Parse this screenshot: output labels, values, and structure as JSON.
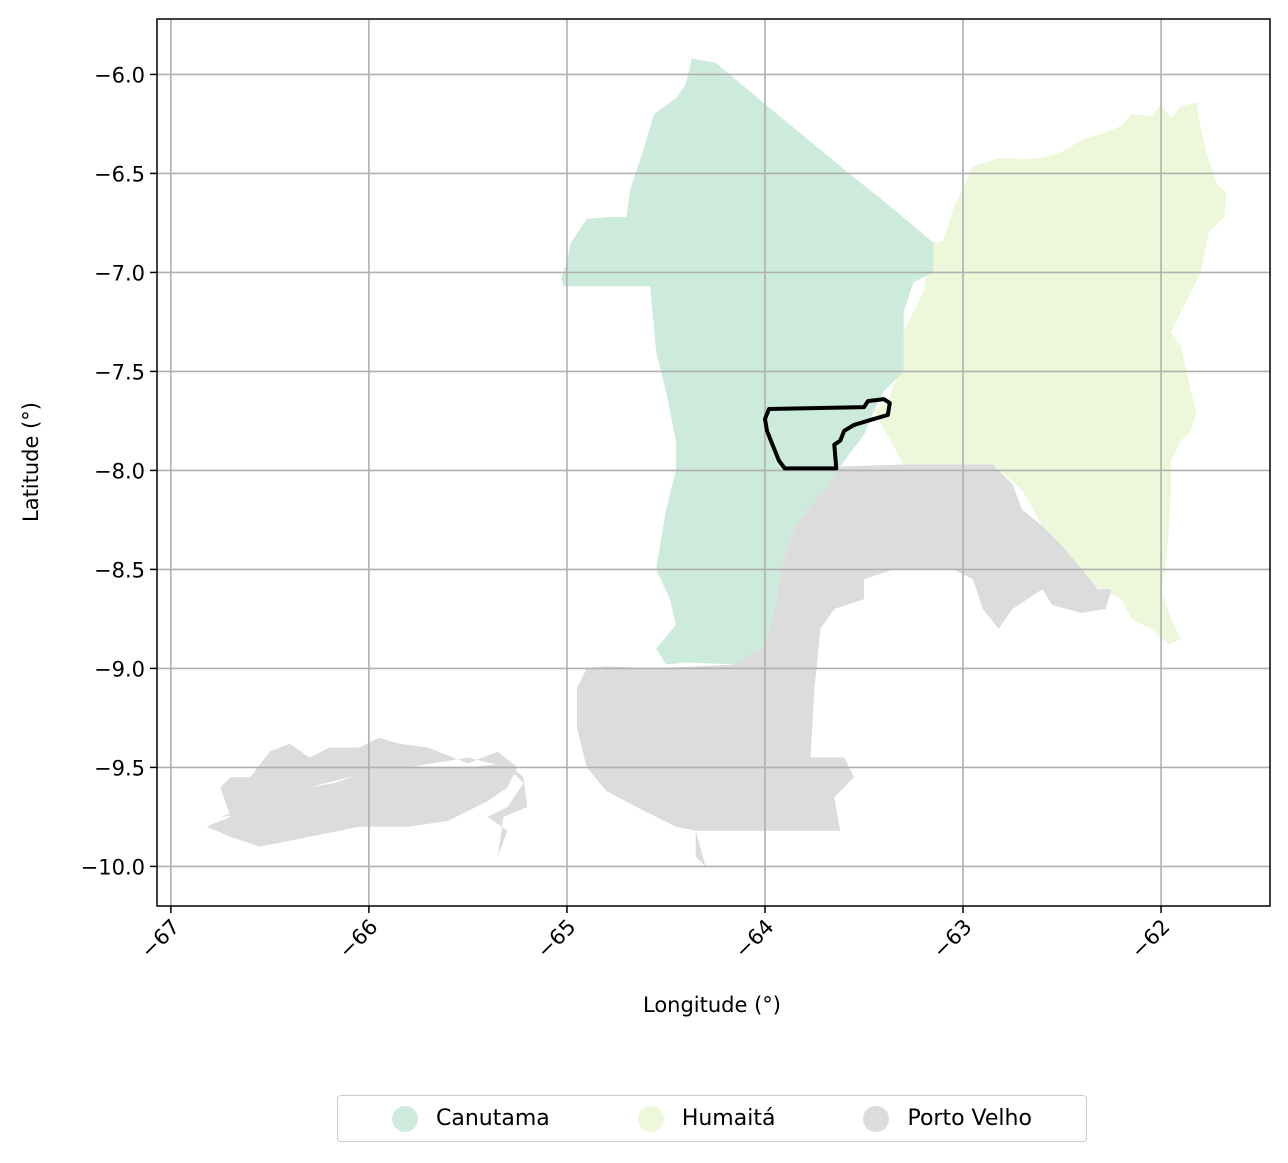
{
  "chart_data": {
    "type": "map",
    "xlabel": "Longitude (°)",
    "ylabel": "Latitude (°)",
    "xlim": [
      -67.07,
      -61.45
    ],
    "ylim": [
      -10.2,
      -5.72
    ],
    "xticks": [
      -67,
      -66,
      -65,
      -64,
      -63,
      -62
    ],
    "xtick_labels": [
      "−67",
      "−66",
      "−65",
      "−64",
      "−63",
      "−62"
    ],
    "yticks": [
      -6.0,
      -6.5,
      -7.0,
      -7.5,
      -8.0,
      -8.5,
      -9.0,
      -9.5,
      -10.0
    ],
    "ytick_labels": [
      "−6.0",
      "−6.5",
      "−7.0",
      "−7.5",
      "−8.0",
      "−8.5",
      "−9.0",
      "−9.5",
      "−10.0"
    ],
    "grid": true,
    "legend_position": "bottom-center, below plot",
    "regions": [
      {
        "name": "Humaitá",
        "color": "#edf8da",
        "outline": [
          [
            -63.15,
            -6.85
          ],
          [
            -63.1,
            -6.84
          ],
          [
            -63.05,
            -6.68
          ],
          [
            -62.95,
            -6.46
          ],
          [
            -62.8,
            -6.42
          ],
          [
            -62.7,
            -6.43
          ],
          [
            -62.6,
            -6.42
          ],
          [
            -62.5,
            -6.39
          ],
          [
            -62.4,
            -6.33
          ],
          [
            -62.3,
            -6.3
          ],
          [
            -62.2,
            -6.26
          ],
          [
            -62.15,
            -6.2
          ],
          [
            -62.05,
            -6.21
          ],
          [
            -62.0,
            -6.15
          ],
          [
            -61.95,
            -6.22
          ],
          [
            -61.9,
            -6.16
          ],
          [
            -61.82,
            -6.14
          ],
          [
            -61.8,
            -6.27
          ],
          [
            -61.77,
            -6.4
          ],
          [
            -61.72,
            -6.55
          ],
          [
            -61.67,
            -6.6
          ],
          [
            -61.68,
            -6.72
          ],
          [
            -61.76,
            -6.8
          ],
          [
            -61.8,
            -7.0
          ],
          [
            -61.9,
            -7.2
          ],
          [
            -61.95,
            -7.3
          ],
          [
            -61.9,
            -7.37
          ],
          [
            -61.85,
            -7.6
          ],
          [
            -61.82,
            -7.7
          ],
          [
            -61.85,
            -7.8
          ],
          [
            -61.9,
            -7.85
          ],
          [
            -61.95,
            -7.95
          ],
          [
            -61.95,
            -8.1
          ],
          [
            -61.96,
            -8.3
          ],
          [
            -61.98,
            -8.5
          ],
          [
            -62.0,
            -8.6
          ],
          [
            -61.95,
            -8.75
          ],
          [
            -61.9,
            -8.85
          ],
          [
            -61.96,
            -8.88
          ],
          [
            -62.05,
            -8.8
          ],
          [
            -62.15,
            -8.75
          ],
          [
            -62.2,
            -8.65
          ],
          [
            -62.3,
            -8.6
          ],
          [
            -62.4,
            -8.55
          ],
          [
            -62.5,
            -8.38
          ],
          [
            -62.6,
            -8.28
          ],
          [
            -62.7,
            -8.1
          ],
          [
            -62.85,
            -7.97
          ],
          [
            -63.1,
            -7.97
          ],
          [
            -63.3,
            -7.97
          ],
          [
            -63.45,
            -7.7
          ],
          [
            -63.38,
            -7.65
          ],
          [
            -63.32,
            -7.5
          ],
          [
            -63.3,
            -7.3
          ],
          [
            -63.2,
            -7.1
          ],
          [
            -63.15,
            -6.85
          ]
        ]
      },
      {
        "name": "Canutama",
        "color": "#ccebdc",
        "outline": [
          [
            -64.37,
            -5.92
          ],
          [
            -64.25,
            -5.94
          ],
          [
            -64.0,
            -6.15
          ],
          [
            -63.6,
            -6.48
          ],
          [
            -63.35,
            -6.68
          ],
          [
            -63.15,
            -6.85
          ],
          [
            -63.15,
            -7.0
          ],
          [
            -63.25,
            -7.05
          ],
          [
            -63.3,
            -7.2
          ],
          [
            -63.3,
            -7.5
          ],
          [
            -63.4,
            -7.6
          ],
          [
            -63.45,
            -7.7
          ],
          [
            -63.5,
            -7.82
          ],
          [
            -63.62,
            -7.98
          ],
          [
            -63.7,
            -8.1
          ],
          [
            -63.85,
            -8.28
          ],
          [
            -63.92,
            -8.5
          ],
          [
            -63.95,
            -8.7
          ],
          [
            -64.0,
            -8.88
          ],
          [
            -64.15,
            -8.98
          ],
          [
            -64.4,
            -8.97
          ],
          [
            -64.5,
            -8.98
          ],
          [
            -64.55,
            -8.9
          ],
          [
            -64.45,
            -8.78
          ],
          [
            -64.48,
            -8.65
          ],
          [
            -64.55,
            -8.5
          ],
          [
            -64.5,
            -8.2
          ],
          [
            -64.45,
            -8.0
          ],
          [
            -64.45,
            -7.85
          ],
          [
            -64.5,
            -7.6
          ],
          [
            -64.55,
            -7.4
          ],
          [
            -64.58,
            -7.07
          ],
          [
            -65.02,
            -7.07
          ],
          [
            -65.03,
            -7.03
          ],
          [
            -65.0,
            -6.95
          ],
          [
            -64.98,
            -6.85
          ],
          [
            -64.9,
            -6.73
          ],
          [
            -64.8,
            -6.72
          ],
          [
            -64.7,
            -6.72
          ],
          [
            -64.68,
            -6.58
          ],
          [
            -64.62,
            -6.4
          ],
          [
            -64.56,
            -6.2
          ],
          [
            -64.45,
            -6.12
          ],
          [
            -64.4,
            -6.05
          ],
          [
            -64.37,
            -5.92
          ]
        ]
      },
      {
        "name": "Porto Velho",
        "color": "#dcdcdc",
        "outline": [
          [
            -63.62,
            -7.98
          ],
          [
            -63.3,
            -7.97
          ],
          [
            -63.1,
            -7.97
          ],
          [
            -62.85,
            -7.97
          ],
          [
            -62.75,
            -8.07
          ],
          [
            -62.7,
            -8.2
          ],
          [
            -62.6,
            -8.28
          ],
          [
            -62.5,
            -8.38
          ],
          [
            -62.4,
            -8.5
          ],
          [
            -62.32,
            -8.6
          ],
          [
            -62.25,
            -8.6
          ],
          [
            -62.28,
            -8.7
          ],
          [
            -62.4,
            -8.72
          ],
          [
            -62.55,
            -8.68
          ],
          [
            -62.6,
            -8.6
          ],
          [
            -62.75,
            -8.7
          ],
          [
            -62.82,
            -8.8
          ],
          [
            -62.9,
            -8.7
          ],
          [
            -62.95,
            -8.55
          ],
          [
            -63.05,
            -8.5
          ],
          [
            -63.35,
            -8.5
          ],
          [
            -63.5,
            -8.55
          ],
          [
            -63.5,
            -8.65
          ],
          [
            -63.65,
            -8.7
          ],
          [
            -63.72,
            -8.8
          ],
          [
            -63.75,
            -9.1
          ],
          [
            -63.77,
            -9.45
          ],
          [
            -63.6,
            -9.45
          ],
          [
            -63.55,
            -9.55
          ],
          [
            -63.65,
            -9.65
          ],
          [
            -63.62,
            -9.82
          ],
          [
            -63.9,
            -9.82
          ],
          [
            -64.0,
            -9.82
          ],
          [
            -64.35,
            -9.82
          ],
          [
            -64.35,
            -9.95
          ],
          [
            -64.3,
            -10.0
          ],
          [
            -64.95,
            -10.0
          ],
          [
            -65.2,
            -10.0
          ],
          [
            -65.35,
            -9.95
          ],
          [
            -65.32,
            -9.75
          ],
          [
            -65.2,
            -9.7
          ],
          [
            -65.22,
            -9.55
          ],
          [
            -65.3,
            -9.48
          ],
          [
            -65.5,
            -9.5
          ],
          [
            -65.7,
            -9.5
          ],
          [
            -65.9,
            -9.5
          ],
          [
            -66.0,
            -9.52
          ],
          [
            -66.18,
            -9.58
          ],
          [
            -66.3,
            -9.6
          ],
          [
            -66.45,
            -9.62
          ],
          [
            -66.6,
            -9.7
          ],
          [
            -66.75,
            -9.75
          ],
          [
            -66.82,
            -9.8
          ],
          [
            -66.7,
            -9.85
          ],
          [
            -66.55,
            -9.9
          ],
          [
            -66.3,
            -9.85
          ],
          [
            -66.05,
            -9.8
          ],
          [
            -65.8,
            -9.8
          ],
          [
            -65.6,
            -9.77
          ],
          [
            -65.4,
            -9.67
          ],
          [
            -65.3,
            -9.6
          ],
          [
            -65.25,
            -9.5
          ],
          [
            -65.35,
            -9.42
          ],
          [
            -65.5,
            -9.48
          ],
          [
            -65.7,
            -9.4
          ],
          [
            -65.85,
            -9.38
          ],
          [
            -65.95,
            -9.35
          ],
          [
            -66.05,
            -9.4
          ],
          [
            -66.2,
            -9.4
          ],
          [
            -66.3,
            -9.45
          ],
          [
            -66.4,
            -9.38
          ],
          [
            -66.5,
            -9.42
          ],
          [
            -66.6,
            -9.55
          ],
          [
            -66.7,
            -9.55
          ],
          [
            -66.75,
            -9.6
          ],
          [
            -66.7,
            -9.75
          ],
          [
            -66.82,
            -9.8
          ],
          [
            -66.75,
            -9.75
          ],
          [
            -66.5,
            -9.72
          ],
          [
            -66.3,
            -9.6
          ],
          [
            -66.1,
            -9.55
          ],
          [
            -65.8,
            -9.5
          ],
          [
            -65.5,
            -9.45
          ],
          [
            -65.3,
            -9.5
          ],
          [
            -65.22,
            -9.58
          ],
          [
            -65.3,
            -9.7
          ],
          [
            -65.4,
            -9.75
          ],
          [
            -65.3,
            -9.82
          ],
          [
            -65.35,
            -9.95
          ],
          [
            -65.2,
            -10.0
          ],
          [
            -64.95,
            -10.0
          ],
          [
            -64.3,
            -10.0
          ],
          [
            -64.35,
            -9.82
          ],
          [
            -64.45,
            -9.8
          ],
          [
            -64.55,
            -9.75
          ],
          [
            -64.65,
            -9.7
          ],
          [
            -64.8,
            -9.62
          ],
          [
            -64.9,
            -9.5
          ],
          [
            -64.95,
            -9.3
          ],
          [
            -64.95,
            -9.1
          ],
          [
            -64.9,
            -9.0
          ],
          [
            -64.8,
            -8.99
          ],
          [
            -64.55,
            -9.0
          ],
          [
            -64.15,
            -8.98
          ],
          [
            -64.0,
            -8.88
          ],
          [
            -63.95,
            -8.7
          ],
          [
            -63.92,
            -8.5
          ],
          [
            -63.85,
            -8.28
          ],
          [
            -63.7,
            -8.1
          ],
          [
            -63.62,
            -7.98
          ]
        ]
      }
    ],
    "highlight": {
      "label": "",
      "outline": [
        [
          -63.98,
          -7.69
        ],
        [
          -63.5,
          -7.68
        ],
        [
          -63.48,
          -7.65
        ],
        [
          -63.4,
          -7.64
        ],
        [
          -63.37,
          -7.66
        ],
        [
          -63.38,
          -7.72
        ],
        [
          -63.45,
          -7.74
        ],
        [
          -63.55,
          -7.77
        ],
        [
          -63.6,
          -7.8
        ],
        [
          -63.62,
          -7.85
        ],
        [
          -63.65,
          -7.87
        ],
        [
          -63.64,
          -7.99
        ],
        [
          -63.9,
          -7.99
        ],
        [
          -63.93,
          -7.95
        ],
        [
          -63.95,
          -7.9
        ],
        [
          -63.97,
          -7.85
        ],
        [
          -63.99,
          -7.8
        ],
        [
          -64.0,
          -7.74
        ],
        [
          -63.98,
          -7.69
        ]
      ]
    }
  },
  "legend": {
    "items": [
      {
        "label": "Canutama",
        "color": "#ccebdc"
      },
      {
        "label": "Humaitá",
        "color": "#edf8da"
      },
      {
        "label": "Porto Velho",
        "color": "#dcdcdc"
      }
    ]
  }
}
